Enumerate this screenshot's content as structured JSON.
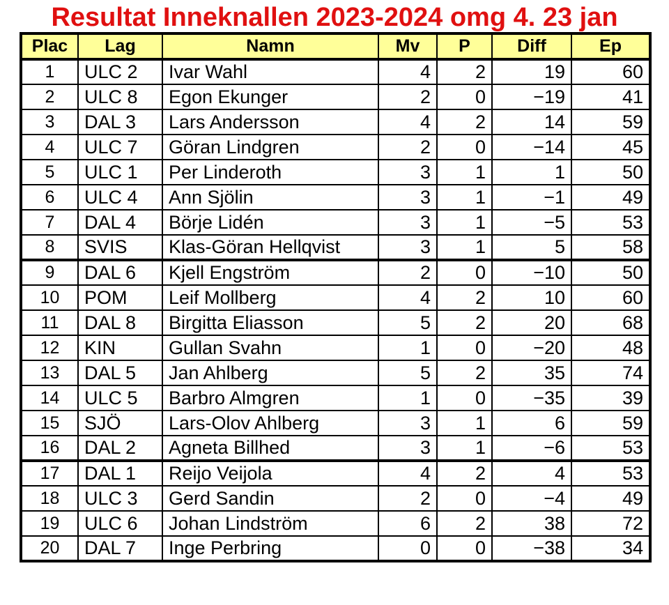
{
  "title": "Resultat Inneknallen 2023-2024 omg 4. 23 jan",
  "colors": {
    "title_red": "#e01010",
    "header_yellow": "#ffff99",
    "border_black": "#000000"
  },
  "table": {
    "columns": [
      {
        "key": "plac",
        "label": "Plac"
      },
      {
        "key": "lag",
        "label": "Lag"
      },
      {
        "key": "namn",
        "label": "Namn"
      },
      {
        "key": "mv",
        "label": "Mv"
      },
      {
        "key": "p",
        "label": "P"
      },
      {
        "key": "diff",
        "label": "Diff"
      },
      {
        "key": "ep",
        "label": "Ep"
      }
    ],
    "group_start_indices": [
      8,
      16
    ],
    "rows": [
      [
        "1",
        "ULC 2",
        "Ivar Wahl",
        "4",
        "2",
        "19",
        "60"
      ],
      [
        "2",
        "ULC 8",
        "Egon Ekunger",
        "2",
        "0",
        "−19",
        "41"
      ],
      [
        "3",
        "DAL 3",
        "Lars Andersson",
        "4",
        "2",
        "14",
        "59"
      ],
      [
        "4",
        "ULC 7",
        "Göran Lindgren",
        "2",
        "0",
        "−14",
        "45"
      ],
      [
        "5",
        "ULC 1",
        "Per Linderoth",
        "3",
        "1",
        "1",
        "50"
      ],
      [
        "6",
        "ULC 4",
        "Ann Sjölin",
        "3",
        "1",
        "−1",
        "49"
      ],
      [
        "7",
        "DAL 4",
        "Börje Lidén",
        "3",
        "1",
        "−5",
        "53"
      ],
      [
        "8",
        "SVIS",
        "Klas-Göran Hellqvist",
        "3",
        "1",
        "5",
        "58"
      ],
      [
        "9",
        "DAL 6",
        "Kjell Engström",
        "2",
        "0",
        "−10",
        "50"
      ],
      [
        "10",
        "POM",
        "Leif Mollberg",
        "4",
        "2",
        "10",
        "60"
      ],
      [
        "11",
        "DAL 8",
        "Birgitta Eliasson",
        "5",
        "2",
        "20",
        "68"
      ],
      [
        "12",
        "KIN",
        "Gullan Svahn",
        "1",
        "0",
        "−20",
        "48"
      ],
      [
        "13",
        "DAL 5",
        "Jan Ahlberg",
        "5",
        "2",
        "35",
        "74"
      ],
      [
        "14",
        "ULC 5",
        "Barbro Almgren",
        "1",
        "0",
        "−35",
        "39"
      ],
      [
        "15",
        "SJÖ",
        "Lars-Olov Ahlberg",
        "3",
        "1",
        "6",
        "59"
      ],
      [
        "16",
        "DAL 2",
        "Agneta Billhed",
        "3",
        "1",
        "−6",
        "53"
      ],
      [
        "17",
        "DAL 1",
        "Reijo Veijola",
        "4",
        "2",
        "4",
        "53"
      ],
      [
        "18",
        "ULC 3",
        "Gerd Sandin",
        "2",
        "0",
        "−4",
        "49"
      ],
      [
        "19",
        "ULC 6",
        "Johan Lindström",
        "6",
        "2",
        "38",
        "72"
      ],
      [
        "20",
        "DAL 7",
        "Inge Perbring",
        "0",
        "0",
        "−38",
        "34"
      ]
    ]
  }
}
